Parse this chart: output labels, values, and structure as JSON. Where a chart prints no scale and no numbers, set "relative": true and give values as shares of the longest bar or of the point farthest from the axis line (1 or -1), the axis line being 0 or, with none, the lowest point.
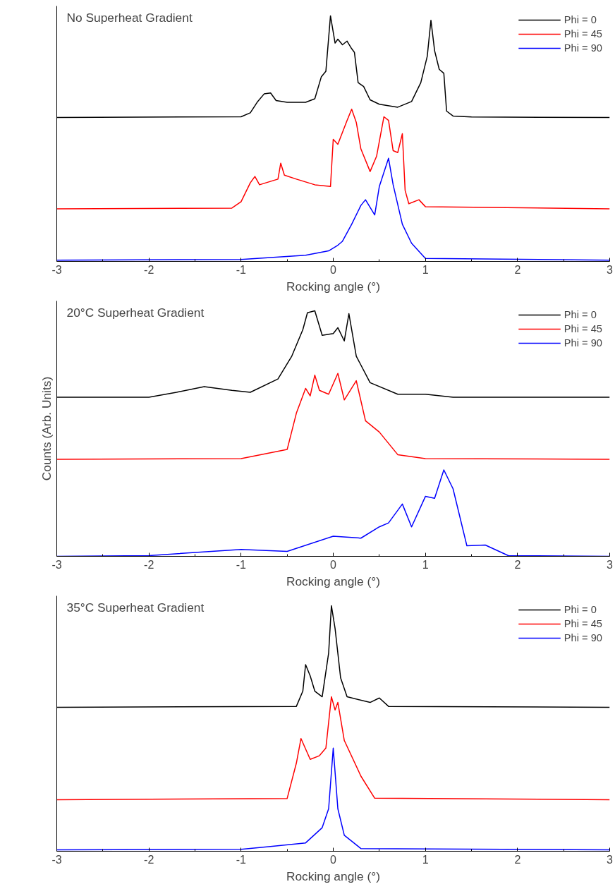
{
  "chart_data": [
    {
      "type": "line",
      "title": "No Superheat Gradient",
      "xlabel": "Rocking angle (°)",
      "relative": true,
      "xlim": [
        -3,
        3
      ],
      "xticks": [
        -3,
        -2,
        -1,
        0,
        1,
        2,
        3
      ],
      "legend": "top right",
      "grid": false,
      "x": [
        -3,
        -1.0,
        -0.9,
        -0.82,
        -0.75,
        -0.68,
        -0.62,
        -0.5,
        -0.3,
        -0.2,
        -0.13,
        -0.08,
        -0.03,
        0.02,
        0.05,
        0.1,
        0.15,
        0.2,
        0.23,
        0.27,
        0.33,
        0.4,
        0.5,
        0.7,
        0.85,
        0.95,
        1.02,
        1.06,
        1.1,
        1.15,
        1.2,
        1.23,
        1.3,
        1.5,
        3
      ],
      "series": [
        {
          "name": "Phi = 0",
          "color": "#000000",
          "values": [
            0.586,
            0.589,
            0.605,
            0.651,
            0.682,
            0.686,
            0.655,
            0.648,
            0.648,
            0.662,
            0.751,
            0.774,
            1.0,
            0.889,
            0.905,
            0.882,
            0.897,
            0.866,
            0.851,
            0.728,
            0.712,
            0.658,
            0.64,
            0.628,
            0.651,
            0.728,
            0.835,
            0.982,
            0.858,
            0.782,
            0.766,
            0.612,
            0.592,
            0.588,
            0.586
          ]
        },
        {
          "name": "Phi = 45",
          "color": "#ff0000",
          "x": [
            -3,
            -1.1,
            -1.0,
            -0.9,
            -0.85,
            -0.8,
            -0.6,
            -0.57,
            -0.53,
            -0.4,
            -0.2,
            -0.03,
            0.0,
            0.05,
            0.15,
            0.2,
            0.25,
            0.3,
            0.4,
            0.47,
            0.55,
            0.6,
            0.65,
            0.7,
            0.75,
            0.78,
            0.82,
            0.93,
            1.0,
            3
          ],
          "values": [
            0.214,
            0.217,
            0.243,
            0.32,
            0.346,
            0.312,
            0.335,
            0.4,
            0.351,
            0.335,
            0.312,
            0.305,
            0.497,
            0.477,
            0.574,
            0.62,
            0.566,
            0.458,
            0.366,
            0.428,
            0.589,
            0.574,
            0.451,
            0.443,
            0.52,
            0.289,
            0.235,
            0.251,
            0.223,
            0.214
          ]
        },
        {
          "name": "Phi = 90",
          "color": "#0000ff",
          "x": [
            -3,
            -1.0,
            -0.3,
            -0.05,
            0.05,
            0.1,
            0.2,
            0.3,
            0.35,
            0.45,
            0.5,
            0.6,
            0.65,
            0.75,
            0.85,
            1.0,
            3
          ],
          "values": [
            0.005,
            0.008,
            0.025,
            0.043,
            0.066,
            0.082,
            0.151,
            0.228,
            0.251,
            0.189,
            0.305,
            0.42,
            0.312,
            0.151,
            0.074,
            0.012,
            0.005
          ]
        }
      ]
    },
    {
      "type": "line",
      "title": "20°C Superheat Gradient",
      "xlabel": "Rocking angle (°)",
      "ylabel": "Counts (Arb. Units)",
      "relative": true,
      "xlim": [
        -3,
        3
      ],
      "xticks": [
        -3,
        -2,
        -1,
        0,
        1,
        2,
        3
      ],
      "legend": "top right",
      "grid": false,
      "x": [
        -3,
        -2,
        -1.7,
        -1.4,
        -1.1,
        -0.9,
        -0.6,
        -0.45,
        -0.33,
        -0.28,
        -0.2,
        -0.12,
        0.0,
        0.05,
        0.12,
        0.17,
        0.25,
        0.4,
        0.7,
        1.0,
        1.3,
        3
      ],
      "series": [
        {
          "name": "Phi = 0",
          "color": "#000000",
          "values": [
            0.648,
            0.648,
            0.668,
            0.691,
            0.676,
            0.668,
            0.722,
            0.815,
            0.923,
            0.992,
            1.0,
            0.9,
            0.907,
            0.931,
            0.877,
            0.988,
            0.815,
            0.707,
            0.66,
            0.66,
            0.648,
            0.648
          ]
        },
        {
          "name": "Phi = 45",
          "color": "#ff0000",
          "x": [
            -3,
            -1,
            -0.5,
            -0.4,
            -0.3,
            -0.25,
            -0.2,
            -0.15,
            -0.05,
            0.05,
            0.12,
            0.25,
            0.35,
            0.5,
            0.7,
            1.0,
            3
          ],
          "values": [
            0.395,
            0.398,
            0.435,
            0.583,
            0.684,
            0.653,
            0.738,
            0.676,
            0.66,
            0.745,
            0.637,
            0.715,
            0.552,
            0.506,
            0.414,
            0.398,
            0.395
          ]
        },
        {
          "name": "Phi = 90",
          "color": "#0000ff",
          "x": [
            -3,
            -2,
            -1,
            -0.5,
            0,
            0.3,
            0.5,
            0.6,
            0.75,
            0.85,
            1.0,
            1.1,
            1.2,
            1.3,
            1.45,
            1.65,
            1.9,
            3
          ],
          "values": [
            0.0,
            0.003,
            0.028,
            0.02,
            0.082,
            0.074,
            0.12,
            0.136,
            0.213,
            0.12,
            0.244,
            0.236,
            0.352,
            0.275,
            0.043,
            0.046,
            0.003,
            0.0
          ]
        }
      ]
    },
    {
      "type": "line",
      "title": "35°C Superheat Gradient",
      "xlabel": "Rocking angle (°)",
      "relative": true,
      "xlim": [
        -3,
        3
      ],
      "xticks": [
        -3,
        -2,
        -1,
        0,
        1,
        2,
        3
      ],
      "legend": "top right",
      "grid": false,
      "x": [
        -3,
        -0.4,
        -0.33,
        -0.3,
        -0.25,
        -0.2,
        -0.12,
        -0.05,
        -0.02,
        0.02,
        0.08,
        0.15,
        0.4,
        0.5,
        0.6,
        3
      ],
      "series": [
        {
          "name": "Phi = 0",
          "color": "#000000",
          "values": [
            0.586,
            0.59,
            0.652,
            0.76,
            0.714,
            0.652,
            0.629,
            0.807,
            1.0,
            0.907,
            0.706,
            0.629,
            0.606,
            0.624,
            0.59,
            0.586
          ]
        },
        {
          "name": "Phi = 45",
          "color": "#ff0000",
          "x": [
            -3,
            -0.5,
            -0.4,
            -0.35,
            -0.25,
            -0.15,
            -0.08,
            -0.02,
            0.02,
            0.05,
            0.12,
            0.3,
            0.45,
            3
          ],
          "values": [
            0.21,
            0.215,
            0.359,
            0.459,
            0.374,
            0.389,
            0.42,
            0.629,
            0.575,
            0.606,
            0.451,
            0.306,
            0.216,
            0.21
          ]
        },
        {
          "name": "Phi = 90",
          "color": "#0000ff",
          "x": [
            -3,
            -1,
            -0.7,
            -0.3,
            -0.12,
            -0.05,
            0.0,
            0.05,
            0.12,
            0.3,
            3
          ],
          "values": [
            0.006,
            0.008,
            0.019,
            0.034,
            0.096,
            0.173,
            0.42,
            0.173,
            0.065,
            0.011,
            0.006
          ]
        }
      ]
    }
  ]
}
